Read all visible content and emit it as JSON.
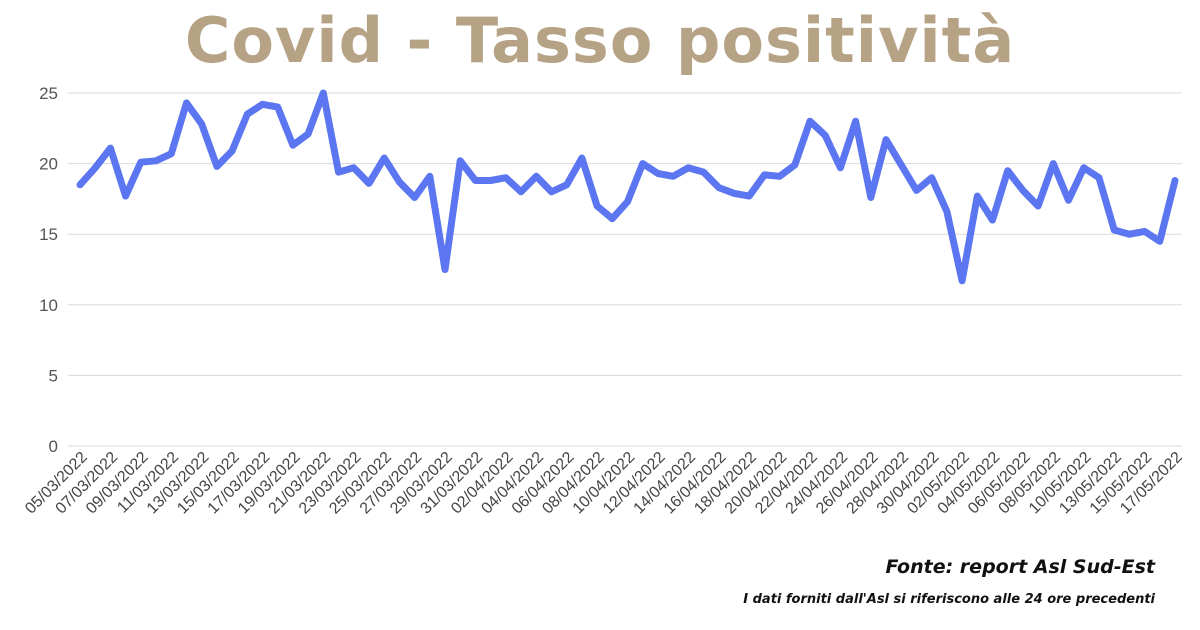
{
  "chart_data": {
    "type": "line",
    "title": "Covid - Tasso positività",
    "x": [
      "05/03/2022",
      "06/03/2022",
      "07/03/2022",
      "08/03/2022",
      "09/03/2022",
      "10/03/2022",
      "11/03/2022",
      "12/03/2022",
      "13/03/2022",
      "14/03/2022",
      "15/03/2022",
      "16/03/2022",
      "17/03/2022",
      "18/03/2022",
      "19/03/2022",
      "20/03/2022",
      "21/03/2022",
      "22/03/2022",
      "23/03/2022",
      "24/03/2022",
      "25/03/2022",
      "26/03/2022",
      "27/03/2022",
      "28/03/2022",
      "29/03/2022",
      "30/03/2022",
      "31/03/2022",
      "01/04/2022",
      "02/04/2022",
      "03/04/2022",
      "04/04/2022",
      "05/04/2022",
      "06/04/2022",
      "07/04/2022",
      "08/04/2022",
      "09/04/2022",
      "10/04/2022",
      "11/04/2022",
      "12/04/2022",
      "13/04/2022",
      "14/04/2022",
      "15/04/2022",
      "16/04/2022",
      "17/04/2022",
      "18/04/2022",
      "19/04/2022",
      "20/04/2022",
      "21/04/2022",
      "22/04/2022",
      "23/04/2022",
      "24/04/2022",
      "25/04/2022",
      "26/04/2022",
      "27/04/2022",
      "28/04/2022",
      "29/04/2022",
      "30/04/2022",
      "01/05/2022",
      "02/05/2022",
      "03/05/2022",
      "04/05/2022",
      "05/05/2022",
      "06/05/2022",
      "07/05/2022",
      "08/05/2022",
      "09/05/2022",
      "10/05/2022",
      "11/05/2022",
      "13/05/2022",
      "14/05/2022",
      "15/05/2022",
      "16/05/2022",
      "17/05/2022"
    ],
    "series": [
      {
        "values": [
          18.5,
          19.7,
          21.1,
          17.7,
          20.1,
          20.2,
          20.7,
          24.3,
          22.8,
          19.8,
          20.9,
          23.5,
          24.2,
          24.0,
          21.3,
          22.1,
          25.0,
          19.4,
          19.7,
          18.6,
          20.4,
          18.7,
          17.6,
          19.1,
          12.5,
          20.2,
          18.8,
          18.8,
          19.0,
          18.0,
          19.1,
          18.0,
          18.5,
          20.4,
          17.0,
          16.1,
          17.3,
          20.0,
          19.3,
          19.1,
          19.7,
          19.4,
          18.3,
          17.9,
          17.7,
          19.2,
          19.1,
          19.9,
          23.0,
          22.0,
          19.7,
          23.0,
          17.6,
          21.7,
          19.9,
          18.1,
          19.0,
          16.6,
          11.7,
          17.7,
          16.0,
          19.5,
          18.1,
          17.0,
          20.0,
          17.4,
          19.7,
          19.0,
          15.3,
          15.0,
          15.2,
          14.5,
          18.8
        ]
      }
    ],
    "x_tick_labels": [
      "05/03/2022",
      "07/03/2022",
      "09/03/2022",
      "11/03/2022",
      "13/03/2022",
      "15/03/2022",
      "17/03/2022",
      "19/03/2022",
      "21/03/2022",
      "23/03/2022",
      "25/03/2022",
      "27/03/2022",
      "29/03/2022",
      "31/03/2022",
      "02/04/2022",
      "04/04/2022",
      "06/04/2022",
      "08/04/2022",
      "10/04/2022",
      "12/04/2022",
      "14/04/2022",
      "16/04/2022",
      "18/04/2022",
      "20/04/2022",
      "22/04/2022",
      "24/04/2022",
      "26/04/2022",
      "28/04/2022",
      "30/04/2022",
      "02/05/2022",
      "04/05/2022",
      "06/05/2022",
      "08/05/2022",
      "10/05/2022",
      "13/05/2022",
      "15/05/2022",
      "17/05/2022"
    ],
    "y_ticks": [
      0,
      5,
      10,
      15,
      20,
      25
    ],
    "ylim": [
      0,
      25
    ],
    "xlabel": "",
    "ylabel": "",
    "grid": true,
    "legend": "none",
    "colors": {
      "line": "#5b76f0",
      "grid": "#d9d9d9",
      "title": "#b6a285"
    }
  },
  "footer": {
    "source": "Fonte: report Asl Sud-Est",
    "note": "I dati forniti dall'Asl si riferiscono alle 24 ore precedenti"
  }
}
